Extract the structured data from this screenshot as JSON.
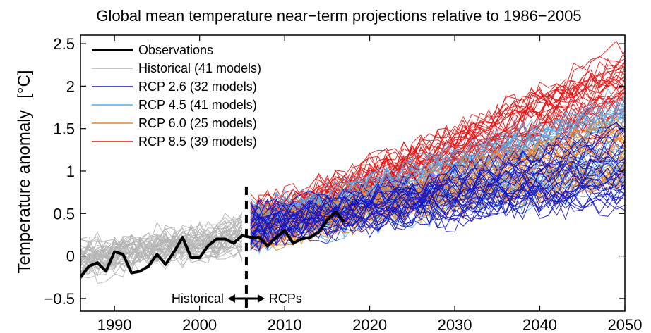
{
  "chart_data": {
    "type": "line",
    "title": "Global mean temperature near−term projections relative to 1986−2005",
    "ylabel": "Temperature anomaly",
    "yunit": "[°C]",
    "xlim": [
      1986,
      2050
    ],
    "ylim": [
      -0.65,
      2.6
    ],
    "xticks": [
      "1990",
      "2000",
      "2010",
      "2020",
      "2030",
      "2040",
      "2050"
    ],
    "yticks": [
      "−0.5",
      "0",
      "0.5",
      "1",
      "1.5",
      "2",
      "2.5"
    ],
    "divider_year": 2005.5,
    "annotations": {
      "left": "Historical",
      "right": "RCPs"
    },
    "legend": {
      "position": "top-left",
      "entries": [
        {
          "label": "Observations",
          "color": "#000000"
        },
        {
          "label": "Historical (41 models)",
          "color": "#b4b4b4"
        },
        {
          "label": "RCP 2.6 (32 models)",
          "color": "#1414c8"
        },
        {
          "label": "RCP 4.5 (41 models)",
          "color": "#5aaae6"
        },
        {
          "label": "RCP 6.0 (25 models)",
          "color": "#f0821e"
        },
        {
          "label": "RCP 8.5 (39 models)",
          "color": "#e61414"
        }
      ]
    },
    "observations": {
      "name": "Observations",
      "x": [
        1986,
        1987,
        1988,
        1989,
        1990,
        1991,
        1992,
        1993,
        1994,
        1995,
        1996,
        1997,
        1998,
        1999,
        2000,
        2001,
        2002,
        2003,
        2004,
        2005,
        2006,
        2007,
        2008,
        2009,
        2010,
        2011,
        2012,
        2013,
        2014,
        2015,
        2016,
        2017
      ],
      "y": [
        -0.25,
        -0.12,
        -0.08,
        -0.18,
        0.05,
        0.02,
        -0.2,
        -0.18,
        -0.12,
        0.02,
        -0.1,
        0.05,
        0.22,
        -0.02,
        -0.02,
        0.12,
        0.2,
        0.2,
        0.15,
        0.24,
        0.22,
        0.22,
        0.12,
        0.22,
        0.3,
        0.15,
        0.2,
        0.22,
        0.28,
        0.42,
        0.52,
        0.4
      ]
    },
    "series": [
      {
        "label_ref": "Historical (41 models)",
        "years": [
          1986,
          2005
        ],
        "start": [
          -0.2,
          0.12
        ],
        "end": [
          0.1,
          0.38
        ],
        "color": "#b4b4b4",
        "count": 41
      },
      {
        "label_ref": "RCP 2.6 (32 models)",
        "years": [
          2006,
          2050
        ],
        "start": [
          0.15,
          0.55
        ],
        "end": [
          0.6,
          1.5
        ],
        "color": "#1414c8",
        "count": 32
      },
      {
        "label_ref": "RCP 4.5 (41 models)",
        "years": [
          2006,
          2050
        ],
        "start": [
          0.15,
          0.55
        ],
        "end": [
          0.8,
          1.9
        ],
        "color": "#5aaae6",
        "count": 41
      },
      {
        "label_ref": "RCP 6.0 (25 models)",
        "years": [
          2006,
          2050
        ],
        "start": [
          0.1,
          0.5
        ],
        "end": [
          0.7,
          1.6
        ],
        "color": "#f0821e",
        "count": 25
      },
      {
        "label_ref": "RCP 8.5 (39 models)",
        "years": [
          2006,
          2050
        ],
        "start": [
          0.15,
          0.6
        ],
        "end": [
          1.3,
          2.5
        ],
        "color": "#e61414",
        "count": 39
      }
    ],
    "grid": false
  }
}
